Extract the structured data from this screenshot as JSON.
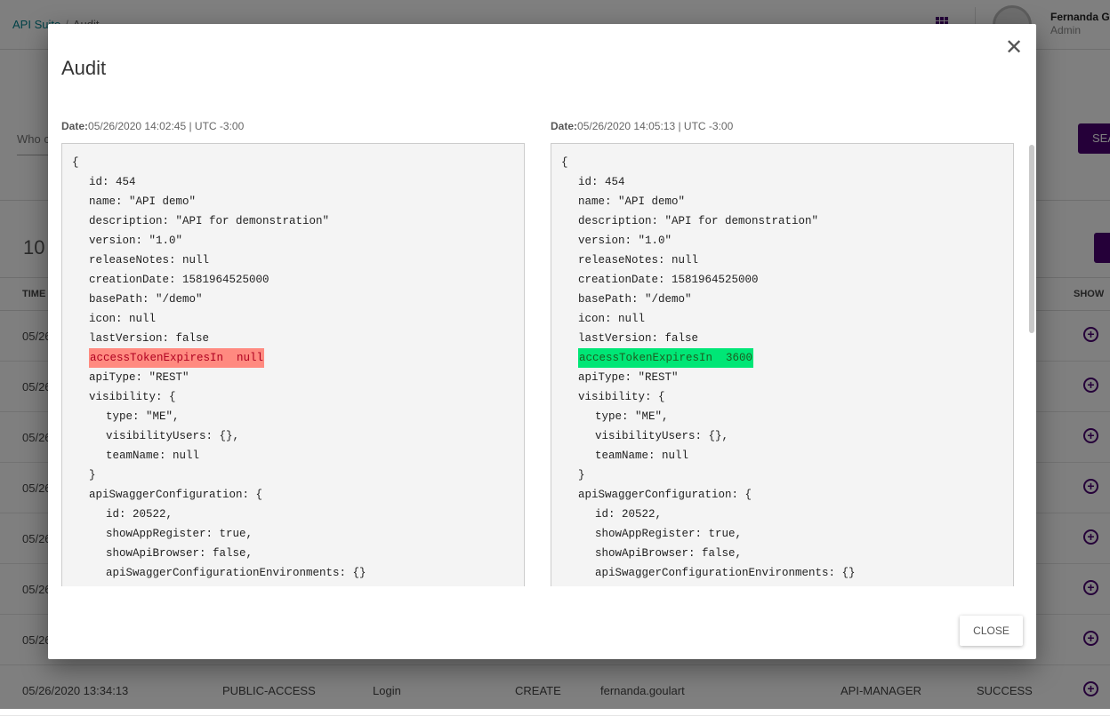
{
  "header": {
    "breadcrumb": [
      "API Suite",
      "Audit"
    ],
    "user_name": "Fernanda G",
    "user_role": "Admin"
  },
  "filter": {
    "label": "Who c",
    "search_label": "SEA"
  },
  "results": {
    "count": "10"
  },
  "table": {
    "headers": {
      "time": "TIME",
      "show": "SHOW"
    },
    "rows": [
      [
        "05/26"
      ],
      [
        "05/26"
      ],
      [
        "05/26"
      ],
      [
        "05/26"
      ],
      [
        "05/26"
      ],
      [
        "05/26"
      ],
      [
        "05/26"
      ],
      [
        "05/26/2020 13:34:13",
        "PUBLIC-ACCESS",
        "Login",
        "CREATE",
        "fernanda.goulart",
        "API-MANAGER",
        "SUCCESS"
      ]
    ]
  },
  "colors": {
    "accent": "#4a0072",
    "removed": "#ff8a80",
    "added": "#00e676",
    "link": "#00838f"
  },
  "modal": {
    "title": "Audit",
    "close_label": "CLOSE",
    "left": {
      "date_label": "Date:",
      "date": "05/26/2020 14:02:45 | UTC -3:00",
      "lines": [
        {
          "i": 0,
          "t": "{"
        },
        {
          "i": 1,
          "t": "id: 454"
        },
        {
          "i": 1,
          "t": "name: \"API demo\""
        },
        {
          "i": 1,
          "t": "description: \"API for demonstration\""
        },
        {
          "i": 1,
          "t": "version: \"1.0\""
        },
        {
          "i": 1,
          "t": "releaseNotes: null"
        },
        {
          "i": 1,
          "t": "creationDate: 1581964525000"
        },
        {
          "i": 1,
          "t": "basePath: \"/demo\""
        },
        {
          "i": 1,
          "t": "icon: null"
        },
        {
          "i": 1,
          "t": "lastVersion: false"
        },
        {
          "i": 1,
          "t": "accessTokenExpiresIn  null",
          "h": "removed"
        },
        {
          "i": 1,
          "t": "apiType: \"REST\""
        },
        {
          "i": 1,
          "t": "visibility: {"
        },
        {
          "i": 2,
          "t": "type: \"ME\","
        },
        {
          "i": 2,
          "t": "visibilityUsers: {},"
        },
        {
          "i": 2,
          "t": "teamName: null"
        },
        {
          "i": 1,
          "t": "}"
        },
        {
          "i": 1,
          "t": "apiSwaggerConfiguration: {"
        },
        {
          "i": 2,
          "t": "id: 20522,"
        },
        {
          "i": 2,
          "t": "showAppRegister: true,"
        },
        {
          "i": 2,
          "t": "showApiBrowser: false,"
        },
        {
          "i": 2,
          "t": "apiSwaggerConfigurationEnvironments: {}"
        }
      ]
    },
    "right": {
      "date_label": "Date:",
      "date": "05/26/2020 14:05:13 | UTC -3:00",
      "lines": [
        {
          "i": 0,
          "t": "{"
        },
        {
          "i": 1,
          "t": "id: 454"
        },
        {
          "i": 1,
          "t": "name: \"API demo\""
        },
        {
          "i": 1,
          "t": "description: \"API for demonstration\""
        },
        {
          "i": 1,
          "t": "version: \"1.0\""
        },
        {
          "i": 1,
          "t": "releaseNotes: null"
        },
        {
          "i": 1,
          "t": "creationDate: 1581964525000"
        },
        {
          "i": 1,
          "t": "basePath: \"/demo\""
        },
        {
          "i": 1,
          "t": "icon: null"
        },
        {
          "i": 1,
          "t": "lastVersion: false"
        },
        {
          "i": 1,
          "t": "accessTokenExpiresIn  3600",
          "h": "added"
        },
        {
          "i": 1,
          "t": "apiType: \"REST\""
        },
        {
          "i": 1,
          "t": "visibility: {"
        },
        {
          "i": 2,
          "t": "type: \"ME\","
        },
        {
          "i": 2,
          "t": "visibilityUsers: {},"
        },
        {
          "i": 2,
          "t": "teamName: null"
        },
        {
          "i": 1,
          "t": "}"
        },
        {
          "i": 1,
          "t": "apiSwaggerConfiguration: {"
        },
        {
          "i": 2,
          "t": "id: 20522,"
        },
        {
          "i": 2,
          "t": "showAppRegister: true,"
        },
        {
          "i": 2,
          "t": "showApiBrowser: false,"
        },
        {
          "i": 2,
          "t": "apiSwaggerConfigurationEnvironments: {}"
        }
      ]
    }
  }
}
